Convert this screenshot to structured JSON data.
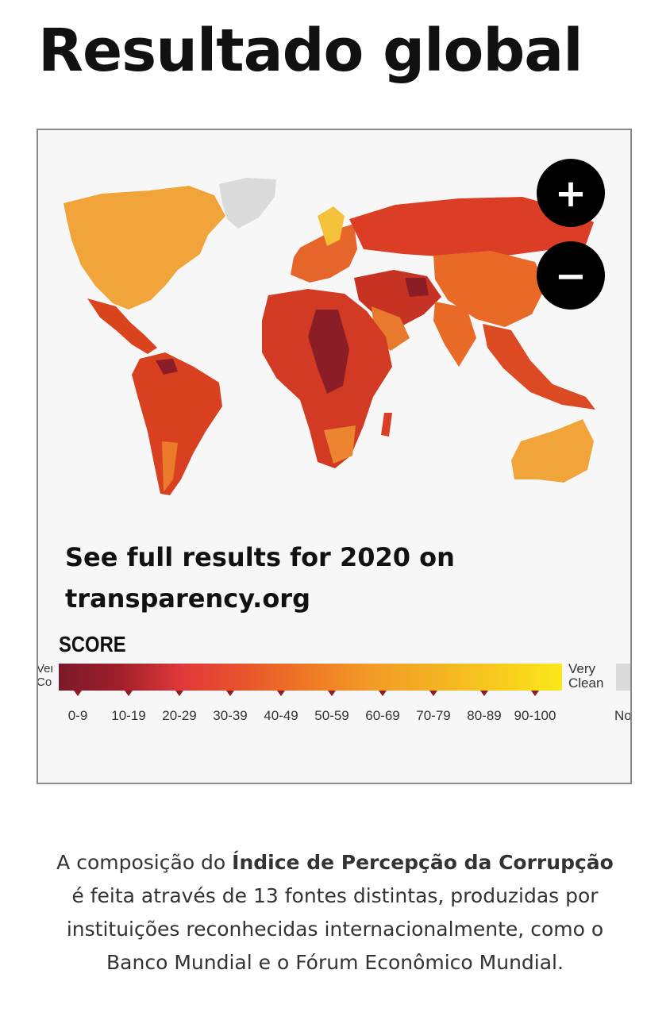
{
  "page": {
    "title": "Resultado global"
  },
  "map": {
    "zoom_in_label": "+",
    "zoom_out_label": "−",
    "cta_line1": "See full results for 2020 on",
    "cta_line2": "transparency.org",
    "legend": {
      "title": "SCORE",
      "left_label_line1": "Very",
      "left_label_line2": "Corrupt",
      "right_label_line1": "Very",
      "right_label_line2": "Clean",
      "nodata_label": "No",
      "ranges": [
        "0-9",
        "10-19",
        "20-29",
        "30-39",
        "40-49",
        "50-59",
        "60-69",
        "70-79",
        "80-89",
        "90-100"
      ],
      "colors": [
        "#7a1a2a",
        "#a01e2a",
        "#e23a3a",
        "#e8552b",
        "#ef7a25",
        "#f29b27",
        "#f4b023",
        "#f7c81e",
        "#f9d91b",
        "#fbe81a"
      ],
      "nodata_color": "#dadada"
    }
  },
  "caption": {
    "part1": "A composição do ",
    "bold1": "Índice de Percepção da Corrupção",
    "part2": " é feita através de 13 fontes distintas, produzidas por instituições reconhecidas internacionalmente, como o Banco Mundial e o Fórum Econômico Mundial."
  }
}
